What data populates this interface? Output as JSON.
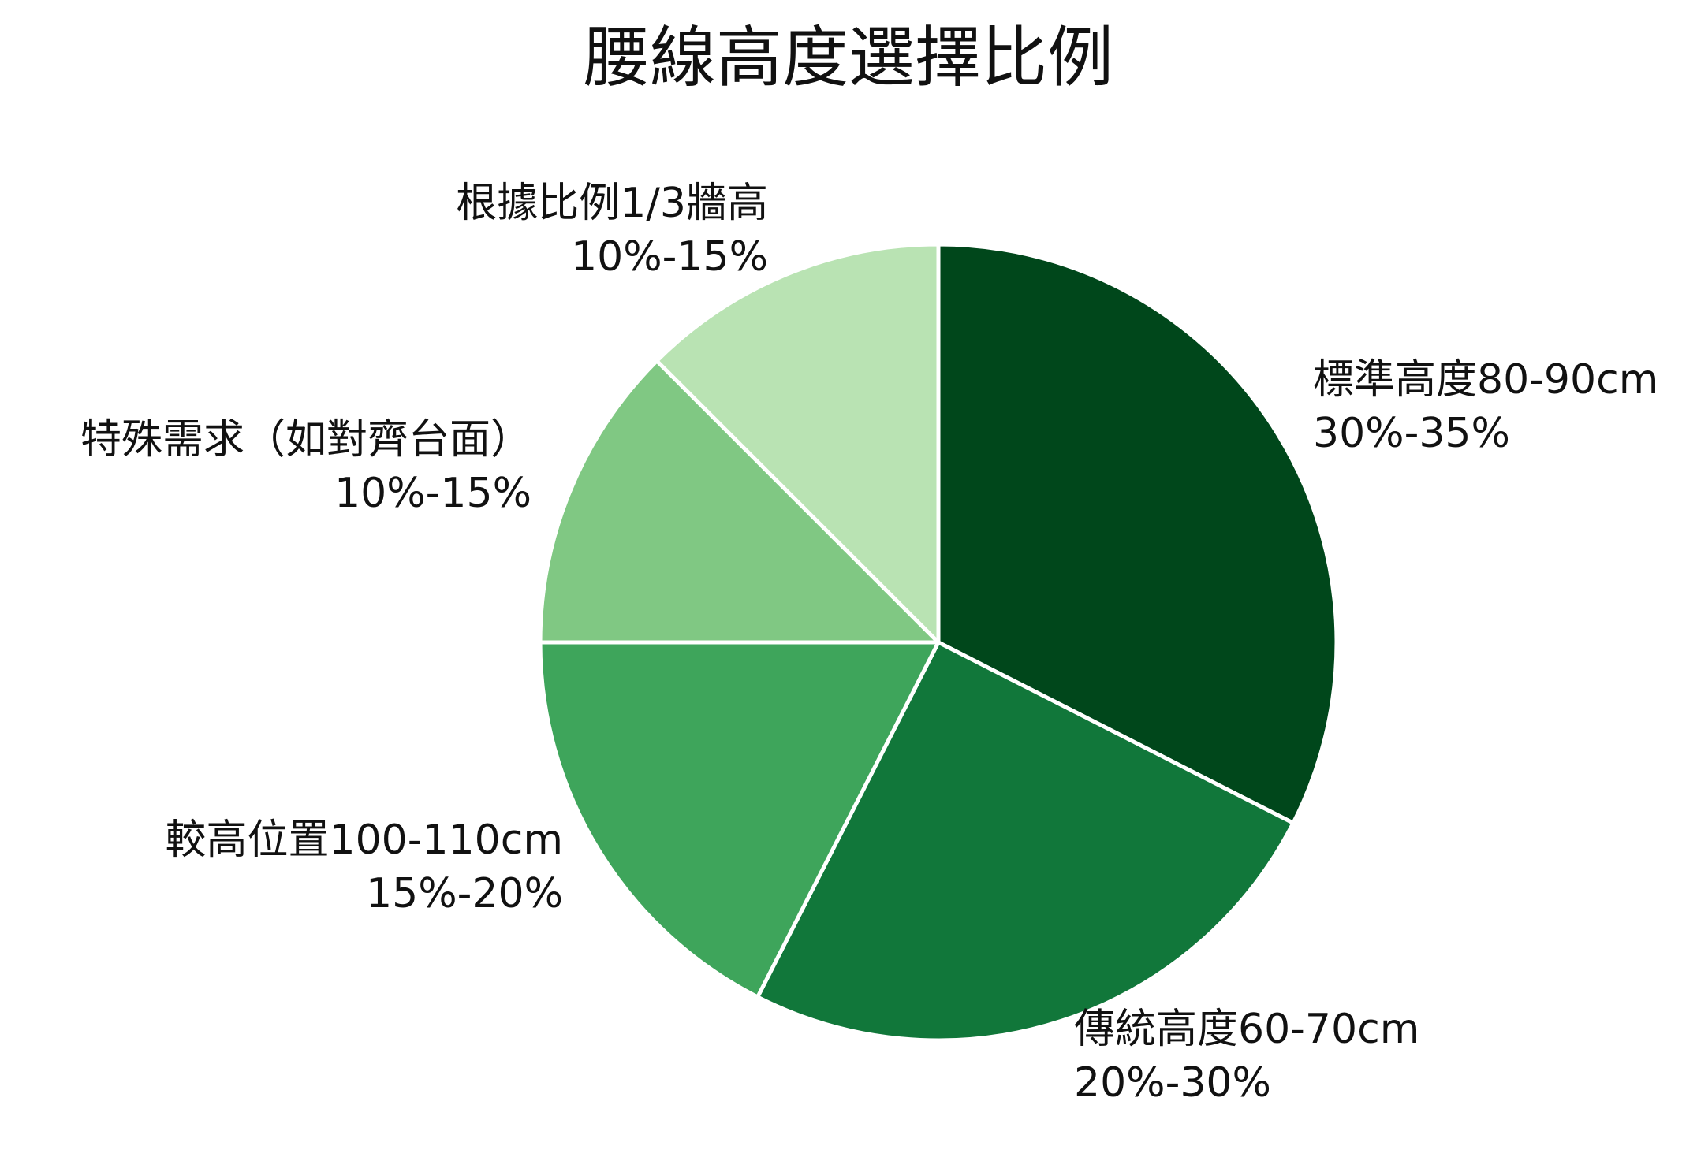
{
  "chart_data": {
    "type": "pie",
    "title": "腰線高度選擇比例",
    "slices": [
      {
        "label": "標準高度80-90cm",
        "range_text": "30%-35%",
        "value": 32.5,
        "color": "#00471b"
      },
      {
        "label": "傳統高度60-70cm",
        "range_text": "20%-30%",
        "value": 25,
        "color": "#11773a"
      },
      {
        "label": "較高位置100-110cm",
        "range_text": "15%-20%",
        "value": 17.5,
        "color": "#3ea55b"
      },
      {
        "label": "特殊需求（如對齊台面）",
        "range_text": "10%-15%",
        "value": 12.5,
        "color": "#80c883"
      },
      {
        "label": "根據比例1/3牆高",
        "range_text": "10%-15%",
        "value": 12.5,
        "color": "#b9e3b3"
      }
    ],
    "start_angle": "12 o'clock",
    "direction": "clockwise",
    "legend": "none"
  }
}
